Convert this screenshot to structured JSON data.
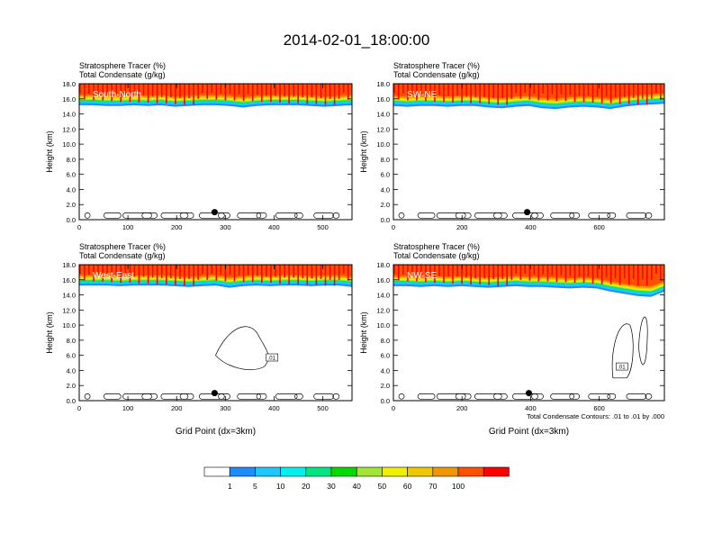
{
  "figure": {
    "title": "2014-02-01_18:00:00",
    "footnote": "Total Condensate Contours: .01 to .01 by .000"
  },
  "colors": {
    "level_0": "#ffffff",
    "level_1": "#1e8cff",
    "level_5": "#1ec8ff",
    "level_10": "#00f0f0",
    "level_20": "#00e680",
    "level_30": "#00dc00",
    "level_40": "#a0e632",
    "level_50": "#f0f000",
    "level_60": "#f0c800",
    "level_70": "#f09600",
    "level_80": "#ff5000",
    "level_100": "#ff0000"
  },
  "colorbar": {
    "labels": [
      "1",
      "5",
      "10",
      "20",
      "30",
      "40",
      "50",
      "60",
      "70",
      "100"
    ],
    "colors": [
      "#ffffff",
      "#1e8cff",
      "#1ec8ff",
      "#00f0f0",
      "#00e680",
      "#00dc00",
      "#a0e632",
      "#f0f000",
      "#f0c800",
      "#f09600",
      "#ff5000",
      "#ff0000"
    ]
  },
  "chart_data": [
    {
      "type": "heatmap",
      "panel_label": "South-North",
      "subtitle_1": "Stratosphere Tracer   (%)",
      "subtitle_2": "Total Condensate   (g/kg)",
      "ylabel": "Height (km)",
      "xlabel": "",
      "xlim": [
        0,
        560
      ],
      "ylim": [
        0,
        18
      ],
      "xticks": [
        "0",
        "100",
        "200",
        "300",
        "400",
        "500"
      ],
      "xtick_values": [
        0,
        100,
        200,
        300,
        400,
        500
      ],
      "yticks": [
        "0.0",
        "2.0",
        "4.0",
        "6.0",
        "8.0",
        "10.0",
        "12.0",
        "14.0",
        "16.0",
        "18.0"
      ],
      "tracer_base_km": [
        15.6,
        15.6,
        15.5,
        15.5,
        15.6,
        15.5,
        15.6,
        15.4,
        15.5,
        15.6,
        15.6,
        15.5,
        15.3,
        15.5,
        15.6,
        15.6,
        15.6,
        15.5,
        15.4,
        15.5,
        15.6
      ],
      "marker": {
        "x": 278,
        "y": 1.0
      },
      "contour_label": ""
    },
    {
      "type": "heatmap",
      "panel_label": "SW-NE",
      "subtitle_1": "Stratosphere Tracer   (%)",
      "subtitle_2": "Total Condensate   (g/kg)",
      "ylabel": "Height (km)",
      "xlabel": "",
      "xlim": [
        0,
        790
      ],
      "ylim": [
        0,
        18
      ],
      "xticks": [
        "0",
        "200",
        "400",
        "600"
      ],
      "xtick_values": [
        0,
        200,
        400,
        600
      ],
      "yticks": [
        "0.0",
        "2.0",
        "4.0",
        "6.0",
        "8.0",
        "10.0",
        "12.0",
        "14.0",
        "16.0",
        "18.0"
      ],
      "tracer_base_km": [
        15.5,
        15.4,
        15.5,
        15.5,
        15.4,
        15.5,
        15.5,
        15.3,
        15.2,
        15.4,
        15.5,
        15.2,
        15.1,
        15.3,
        15.4,
        15.3,
        15.1,
        15.4,
        15.6,
        15.7,
        15.8
      ],
      "marker": {
        "x": 390,
        "y": 1.0
      },
      "contour_label": ""
    },
    {
      "type": "heatmap",
      "panel_label": "West-East",
      "subtitle_1": "Stratosphere Tracer   (%)",
      "subtitle_2": "Total Condensate   (g/kg)",
      "ylabel": "Height (km)",
      "xlabel": "Grid Point (dx=3km)",
      "xlim": [
        0,
        560
      ],
      "ylim": [
        0,
        18
      ],
      "xticks": [
        "0",
        "100",
        "200",
        "300",
        "400",
        "500"
      ],
      "xtick_values": [
        0,
        100,
        200,
        300,
        400,
        500
      ],
      "yticks": [
        "0.0",
        "2.0",
        "4.0",
        "6.0",
        "8.0",
        "10.0",
        "12.0",
        "14.0",
        "16.0",
        "18.0"
      ],
      "tracer_base_km": [
        15.7,
        15.7,
        15.7,
        15.6,
        15.7,
        15.7,
        15.7,
        15.6,
        15.5,
        15.6,
        15.7,
        15.4,
        15.6,
        15.7,
        15.6,
        15.7,
        15.7,
        15.6,
        15.7,
        15.7,
        15.5
      ],
      "marker": {
        "x": 278,
        "y": 1.0
      },
      "contour_label": ".01"
    },
    {
      "type": "heatmap",
      "panel_label": "NW-SE",
      "subtitle_1": "Stratosphere Tracer   (%)",
      "subtitle_2": "Total Condensate   (g/kg)",
      "ylabel": "Height (km)",
      "xlabel": "Grid Point (dx=3km)",
      "xlim": [
        0,
        790
      ],
      "ylim": [
        0,
        18
      ],
      "xticks": [
        "0",
        "200",
        "400",
        "600"
      ],
      "xtick_values": [
        0,
        200,
        400,
        600
      ],
      "yticks": [
        "0.0",
        "2.0",
        "4.0",
        "6.0",
        "8.0",
        "10.0",
        "12.0",
        "14.0",
        "16.0",
        "18.0"
      ],
      "tracer_base_km": [
        15.6,
        15.6,
        15.5,
        15.6,
        15.5,
        15.6,
        15.5,
        15.4,
        15.5,
        15.6,
        15.5,
        15.5,
        15.4,
        15.3,
        15.4,
        15.3,
        14.9,
        14.6,
        14.3,
        14.2,
        14.9
      ],
      "marker": {
        "x": 395,
        "y": 1.0
      },
      "contour_label": ".01"
    }
  ]
}
